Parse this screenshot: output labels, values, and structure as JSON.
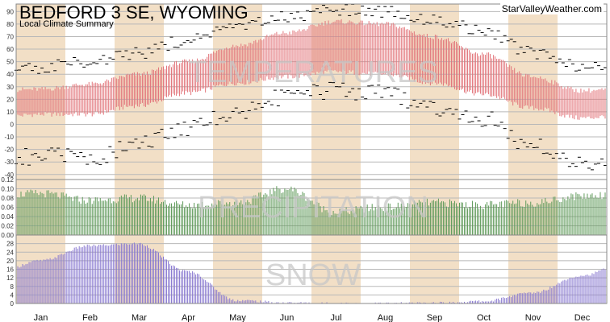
{
  "title": "BEDFORD 3 SE, WYOMING",
  "subtitle": "Local Climate Summary",
  "credit": "StarValleyWeather.com",
  "colors": {
    "band": "#f2dfc6",
    "temp_bar": "#e2747a",
    "precip_bar": "#5f9a5a",
    "snow_bar": "#8878d0",
    "watermark": "#c7c7c7",
    "grid": "#b8b8b8"
  },
  "chart_data": [
    {
      "type": "bar",
      "panel": "temperature",
      "watermark": "TEMPERATURES",
      "months": [
        "Jan",
        "Feb",
        "Mar",
        "Apr",
        "May",
        "Jun",
        "Jul",
        "Aug",
        "Sep",
        "Oct",
        "Nov",
        "Dec"
      ],
      "yticks": [
        -40,
        -30,
        -20,
        -10,
        0,
        10,
        20,
        30,
        40,
        50,
        60,
        70,
        80,
        90
      ],
      "ylim": [
        -44,
        96
      ],
      "month_anchors": {
        "normal_low": [
          8,
          8,
          15,
          25,
          33,
          38,
          42,
          40,
          33,
          24,
          13,
          5
        ],
        "normal_high": [
          28,
          32,
          40,
          50,
          63,
          73,
          82,
          80,
          70,
          56,
          38,
          27
        ],
        "record_high": [
          45,
          50,
          57,
          67,
          77,
          85,
          92,
          90,
          84,
          74,
          57,
          46
        ],
        "record_low": [
          -25,
          -27,
          -15,
          -3,
          10,
          22,
          27,
          25,
          13,
          5,
          -18,
          -30
        ]
      }
    },
    {
      "type": "bar",
      "panel": "precipitation",
      "watermark": "PRECIPITATION",
      "yticks": [
        "0.00",
        "0.02",
        "0.04",
        "0.06",
        "0.08",
        "0.10",
        "0.12"
      ],
      "ylim": [
        0,
        0.12
      ],
      "month_anchors": [
        0.09,
        0.075,
        0.08,
        0.065,
        0.07,
        0.1,
        0.05,
        0.06,
        0.07,
        0.065,
        0.07,
        0.085
      ]
    },
    {
      "type": "bar",
      "panel": "snow",
      "watermark": "SNOW",
      "yticks": [
        0,
        4,
        8,
        12,
        16,
        20,
        24,
        28
      ],
      "ylim": [
        0,
        32
      ],
      "month_anchors": [
        20,
        27,
        28,
        15,
        1.5,
        0.3,
        0,
        0,
        0.2,
        1.0,
        5,
        13
      ]
    }
  ]
}
